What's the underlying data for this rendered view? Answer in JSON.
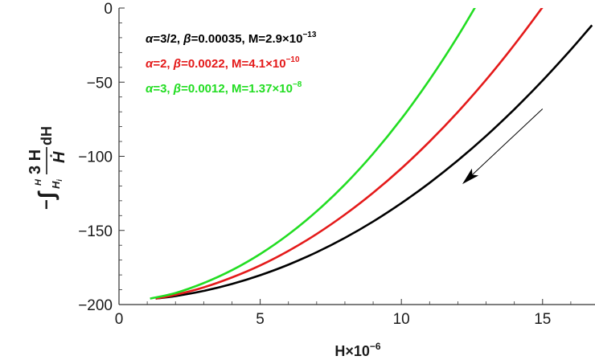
{
  "chart_data": {
    "type": "line",
    "xlabel": {
      "base": "H×10",
      "exp": "−6"
    },
    "ylabel": {
      "prefix": "−",
      "integral": "∫",
      "lower": "H",
      "lower_sub": "i",
      "upper": "H",
      "numerator": "3 H",
      "denominator": "Ḣ",
      "suffix": "dH"
    },
    "xlim": [
      0,
      16.8
    ],
    "ylim": [
      -200,
      0
    ],
    "x_ticks": [
      0,
      5,
      10,
      15
    ],
    "y_ticks": [
      -200,
      -150,
      -100,
      -50,
      0
    ],
    "x_tick_labels": [
      "0",
      "5",
      "10",
      "15"
    ],
    "y_tick_labels": [
      "−200",
      "−150",
      "−100",
      "−50",
      "0"
    ],
    "grid": false,
    "legend_position": "top-left",
    "annotation": {
      "type": "arrow",
      "direction": "down-left",
      "from": [
        15.0,
        -68
      ],
      "to": [
        12.2,
        -118
      ]
    },
    "series": [
      {
        "legend": {
          "alpha": "α",
          "alpha_val": "=3/2, ",
          "beta": "β",
          "beta_val": "=0.00035, M=2.9×10",
          "exp": "−13"
        },
        "color": "#000000",
        "x": [
          1.3,
          2,
          3,
          4,
          5,
          6,
          7,
          8,
          9,
          10,
          11,
          12,
          13,
          14,
          15,
          16,
          16.6,
          16.75
        ],
        "y": [
          -196,
          -194.3,
          -190.8,
          -186.1,
          -180.2,
          -173.1,
          -164.7,
          -155.0,
          -144.0,
          -131.6,
          -117.9,
          -102.8,
          -86.3,
          -68.3,
          -48.9,
          -28.1,
          -14.9,
          -11.6
        ]
      },
      {
        "legend": {
          "alpha": "α",
          "alpha_val": "=2, ",
          "beta": "β",
          "beta_val": "=0.0022, M=4.1×10",
          "exp": "−10"
        },
        "color": "#e41a1a",
        "x": [
          1.3,
          2,
          3,
          4,
          5,
          6,
          7,
          8,
          9,
          10,
          11,
          12,
          13,
          14,
          15,
          15.6
        ],
        "y": [
          -196,
          -193.4,
          -188.4,
          -181.7,
          -173.6,
          -163.8,
          -152.4,
          -139.3,
          -124.6,
          -108.2,
          -90.0,
          -70.1,
          -48.4,
          -24.8,
          0.6,
          16.8
        ]
      },
      {
        "legend": {
          "alpha": "α",
          "alpha_val": "=3, ",
          "beta": "β",
          "beta_val": "=0.0012, M=1.37×10",
          "exp": "−8"
        },
        "color": "#22dd22",
        "x": [
          1.1,
          2,
          3,
          4,
          5,
          6,
          7,
          8,
          9,
          10,
          11,
          12,
          13,
          13.5
        ],
        "y": [
          -196,
          -192.2,
          -185.5,
          -176.8,
          -165.9,
          -152.7,
          -137.1,
          -119.0,
          -98.2,
          -74.7,
          -48.3,
          -19.0,
          13.3,
          30.6
        ]
      }
    ]
  }
}
